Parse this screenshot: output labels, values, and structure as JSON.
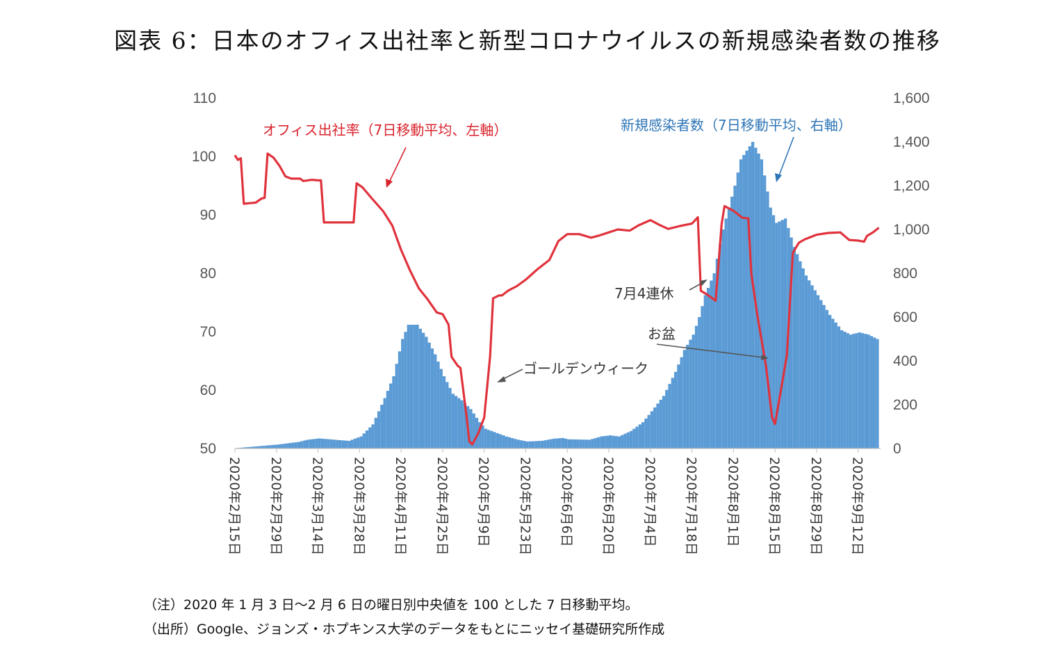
{
  "title": "図表 6：日本のオフィス出社率と新型コロナウイルスの新規感染者数の推移",
  "notes": [
    "（注）2020 年 1 月 3 日〜2 月 6 日の曜日別中央値を 100 とした 7 日移動平均。",
    "（出所）Google、ジョンズ・ホプキンス大学のデータをもとにニッセイ基礎研究所作成"
  ],
  "annotations": {
    "office_label": "オフィス出社率（7日移動平均、左軸）",
    "cases_label": "新規感染者数（7日移動平均、右軸）",
    "gw": "ゴールデンウィーク",
    "july4": "7月4連休",
    "obon": "お盆"
  },
  "colors": {
    "bars": "#5b9bd5",
    "line": "#e0323c",
    "office_text": "#d9232d",
    "cases_text": "#2e75b6",
    "arrow": "#555555"
  },
  "chart_data": {
    "type": "bar+line",
    "x_start": "2020-02-15",
    "x_tick_labels": [
      "2020年2月15日",
      "2020年2月29日",
      "2020年3月14日",
      "2020年3月28日",
      "2020年4月11日",
      "2020年4月25日",
      "2020年5月9日",
      "2020年5月23日",
      "2020年6月6日",
      "2020年6月20日",
      "2020年7月4日",
      "2020年7月18日",
      "2020年8月1日",
      "2020年8月15日",
      "2020年8月29日",
      "2020年9月12日"
    ],
    "y_left": {
      "ticks": [
        "110",
        "100",
        "90",
        "80",
        "70",
        "60",
        "50"
      ],
      "min": 50,
      "max": 110
    },
    "y_right": {
      "ticks": [
        "1,600",
        "1,400",
        "1,200",
        "1,000",
        "800",
        "600",
        "400",
        "200",
        "0"
      ],
      "min": 0,
      "max": 1600
    },
    "series": [
      {
        "name": "新規感染者数（7日移動平均、右軸）",
        "kind": "bar",
        "axis": "right",
        "points": [
          [
            "2020-02-15",
            2
          ],
          [
            "2020-02-22",
            10
          ],
          [
            "2020-02-29",
            18
          ],
          [
            "2020-03-07",
            30
          ],
          [
            "2020-03-10",
            40
          ],
          [
            "2020-03-14",
            46
          ],
          [
            "2020-03-21",
            38
          ],
          [
            "2020-03-24",
            35
          ],
          [
            "2020-03-28",
            55
          ],
          [
            "2020-04-01",
            110
          ],
          [
            "2020-04-05",
            230
          ],
          [
            "2020-04-08",
            330
          ],
          [
            "2020-04-11",
            500
          ],
          [
            "2020-04-13",
            565
          ],
          [
            "2020-04-16",
            565
          ],
          [
            "2020-04-19",
            510
          ],
          [
            "2020-04-22",
            430
          ],
          [
            "2020-04-25",
            330
          ],
          [
            "2020-04-28",
            250
          ],
          [
            "2020-05-01",
            220
          ],
          [
            "2020-05-04",
            180
          ],
          [
            "2020-05-07",
            120
          ],
          [
            "2020-05-09",
            90
          ],
          [
            "2020-05-12",
            75
          ],
          [
            "2020-05-16",
            55
          ],
          [
            "2020-05-20",
            40
          ],
          [
            "2020-05-23",
            32
          ],
          [
            "2020-05-28",
            35
          ],
          [
            "2020-06-01",
            45
          ],
          [
            "2020-06-04",
            48
          ],
          [
            "2020-06-06",
            42
          ],
          [
            "2020-06-13",
            40
          ],
          [
            "2020-06-17",
            55
          ],
          [
            "2020-06-20",
            60
          ],
          [
            "2020-06-23",
            55
          ],
          [
            "2020-06-27",
            80
          ],
          [
            "2020-07-01",
            120
          ],
          [
            "2020-07-04",
            170
          ],
          [
            "2020-07-08",
            240
          ],
          [
            "2020-07-12",
            350
          ],
          [
            "2020-07-15",
            450
          ],
          [
            "2020-07-18",
            520
          ],
          [
            "2020-07-20",
            600
          ],
          [
            "2020-07-22",
            700
          ],
          [
            "2020-07-25",
            800
          ],
          [
            "2020-07-28",
            1000
          ],
          [
            "2020-08-01",
            1200
          ],
          [
            "2020-08-03",
            1320
          ],
          [
            "2020-08-07",
            1400
          ],
          [
            "2020-08-10",
            1320
          ],
          [
            "2020-08-13",
            1100
          ],
          [
            "2020-08-15",
            1030
          ],
          [
            "2020-08-18",
            1050
          ],
          [
            "2020-08-21",
            920
          ],
          [
            "2020-08-25",
            790
          ],
          [
            "2020-08-29",
            700
          ],
          [
            "2020-09-02",
            610
          ],
          [
            "2020-09-06",
            540
          ],
          [
            "2020-09-09",
            520
          ],
          [
            "2020-09-12",
            530
          ],
          [
            "2020-09-15",
            520
          ],
          [
            "2020-09-18",
            500
          ]
        ]
      },
      {
        "name": "オフィス出社率（7日移動平均、左軸）",
        "kind": "line",
        "axis": "left",
        "points": [
          [
            "2020-02-15",
            100.2
          ],
          [
            "2020-02-16",
            99.4
          ],
          [
            "2020-02-17",
            99.7
          ],
          [
            "2020-02-18",
            91.9
          ],
          [
            "2020-02-20",
            92.0
          ],
          [
            "2020-02-22",
            92.1
          ],
          [
            "2020-02-24",
            92.8
          ],
          [
            "2020-02-25",
            92.9
          ],
          [
            "2020-02-26",
            100.5
          ],
          [
            "2020-02-28",
            99.8
          ],
          [
            "2020-03-01",
            98.4
          ],
          [
            "2020-03-03",
            96.6
          ],
          [
            "2020-03-05",
            96.2
          ],
          [
            "2020-03-08",
            96.2
          ],
          [
            "2020-03-09",
            95.8
          ],
          [
            "2020-03-12",
            96.0
          ],
          [
            "2020-03-14",
            95.9
          ],
          [
            "2020-03-15",
            95.9
          ],
          [
            "2020-03-16",
            88.7
          ],
          [
            "2020-03-20",
            88.7
          ],
          [
            "2020-03-26",
            88.7
          ],
          [
            "2020-03-27",
            95.4
          ],
          [
            "2020-03-29",
            94.7
          ],
          [
            "2020-04-01",
            92.9
          ],
          [
            "2020-04-05",
            90.6
          ],
          [
            "2020-04-08",
            88.2
          ],
          [
            "2020-04-11",
            84.0
          ],
          [
            "2020-04-14",
            80.5
          ],
          [
            "2020-04-17",
            77.4
          ],
          [
            "2020-04-20",
            75.5
          ],
          [
            "2020-04-23",
            73.3
          ],
          [
            "2020-04-25",
            73.0
          ],
          [
            "2020-04-27",
            71.2
          ],
          [
            "2020-04-28",
            65.7
          ],
          [
            "2020-04-30",
            64.2
          ],
          [
            "2020-05-01",
            63.8
          ],
          [
            "2020-05-03",
            55.7
          ],
          [
            "2020-05-04",
            51.2
          ],
          [
            "2020-05-05",
            50.7
          ],
          [
            "2020-05-07",
            52.6
          ],
          [
            "2020-05-09",
            55.3
          ],
          [
            "2020-05-11",
            65.8
          ],
          [
            "2020-05-12",
            75.7
          ],
          [
            "2020-05-14",
            76.2
          ],
          [
            "2020-05-15",
            76.2
          ],
          [
            "2020-05-17",
            77.0
          ],
          [
            "2020-05-20",
            77.8
          ],
          [
            "2020-05-23",
            78.9
          ],
          [
            "2020-05-27",
            80.7
          ],
          [
            "2020-05-31",
            82.3
          ],
          [
            "2020-06-03",
            85.5
          ],
          [
            "2020-06-06",
            86.7
          ],
          [
            "2020-06-10",
            86.7
          ],
          [
            "2020-06-12",
            86.4
          ],
          [
            "2020-06-14",
            86.1
          ],
          [
            "2020-06-17",
            86.5
          ],
          [
            "2020-06-20",
            87.0
          ],
          [
            "2020-06-23",
            87.5
          ],
          [
            "2020-06-27",
            87.3
          ],
          [
            "2020-06-30",
            88.2
          ],
          [
            "2020-07-04",
            89.1
          ],
          [
            "2020-07-07",
            88.3
          ],
          [
            "2020-07-10",
            87.6
          ],
          [
            "2020-07-14",
            88.1
          ],
          [
            "2020-07-18",
            88.5
          ],
          [
            "2020-07-20",
            89.6
          ],
          [
            "2020-07-21",
            77.0
          ],
          [
            "2020-07-23",
            76.4
          ],
          [
            "2020-07-26",
            75.3
          ],
          [
            "2020-07-28",
            88.4
          ],
          [
            "2020-07-29",
            91.5
          ],
          [
            "2020-08-01",
            90.7
          ],
          [
            "2020-08-04",
            89.5
          ],
          [
            "2020-08-06",
            89.4
          ],
          [
            "2020-08-07",
            80.0
          ],
          [
            "2020-08-09",
            73.0
          ],
          [
            "2020-08-12",
            64.0
          ],
          [
            "2020-08-14",
            55.3
          ],
          [
            "2020-08-15",
            54.2
          ],
          [
            "2020-08-17",
            60.0
          ],
          [
            "2020-08-19",
            66.0
          ],
          [
            "2020-08-21",
            83.5
          ],
          [
            "2020-08-23",
            85.2
          ],
          [
            "2020-08-25",
            85.8
          ],
          [
            "2020-08-29",
            86.6
          ],
          [
            "2020-09-02",
            86.9
          ],
          [
            "2020-09-06",
            87.0
          ],
          [
            "2020-09-09",
            85.7
          ],
          [
            "2020-09-12",
            85.6
          ],
          [
            "2020-09-14",
            85.4
          ],
          [
            "2020-09-15",
            86.4
          ],
          [
            "2020-09-17",
            87.0
          ],
          [
            "2020-09-19",
            87.8
          ]
        ]
      }
    ]
  }
}
